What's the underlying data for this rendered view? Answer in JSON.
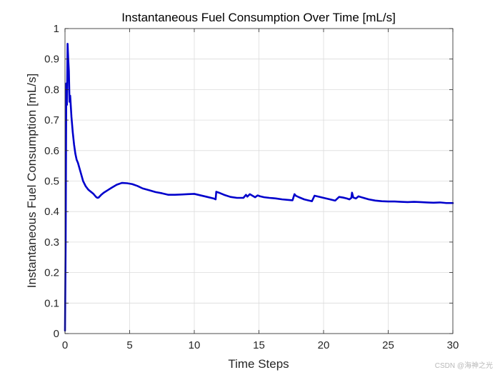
{
  "chart_data": {
    "type": "line",
    "title": "Instantaneous Fuel Consumption Over Time [mL/s]",
    "xlabel": "Time Steps",
    "ylabel": "Instantaneous Fuel Consumption [mL/s]",
    "xlim": [
      0,
      30
    ],
    "ylim": [
      0,
      1
    ],
    "xticks": [
      0,
      5,
      10,
      15,
      20,
      25,
      30
    ],
    "xtick_labels": [
      "0",
      "5",
      "10",
      "15",
      "20",
      "25",
      "30"
    ],
    "yticks": [
      0,
      0.1,
      0.2,
      0.3,
      0.4,
      0.5,
      0.6,
      0.7,
      0.8,
      0.9,
      1
    ],
    "ytick_labels": [
      "0",
      "0.1",
      "0.2",
      "0.3",
      "0.4",
      "0.5",
      "0.6",
      "0.7",
      "0.8",
      "0.9",
      "1"
    ],
    "grid": true,
    "series": [
      {
        "color": "#0000cc",
        "x": [
          0,
          0.05,
          0.1,
          0.15,
          0.2,
          0.25,
          0.3,
          0.35,
          0.4,
          0.5,
          0.6,
          0.7,
          0.8,
          0.9,
          1.0,
          1.2,
          1.4,
          1.6,
          1.8,
          2.0,
          2.2,
          2.4,
          2.5,
          2.6,
          2.8,
          3.0,
          3.3,
          3.6,
          4.0,
          4.4,
          4.8,
          5.2,
          5.6,
          6.0,
          6.5,
          7.0,
          7.5,
          8.0,
          8.5,
          9.0,
          9.5,
          10.0,
          10.5,
          11.0,
          11.5,
          11.65,
          11.7,
          11.9,
          12.3,
          12.8,
          13.3,
          13.8,
          14.0,
          14.1,
          14.3,
          14.5,
          14.7,
          14.9,
          15.1,
          15.4,
          15.8,
          16.3,
          16.8,
          17.3,
          17.6,
          17.75,
          17.85,
          18.1,
          18.5,
          18.9,
          19.1,
          19.3,
          19.6,
          20.0,
          20.5,
          20.9,
          21.2,
          21.5,
          21.8,
          22.0,
          22.15,
          22.2,
          22.3,
          22.5,
          22.7,
          23.0,
          23.5,
          24.0,
          24.5,
          25.0,
          25.5,
          26.0,
          26.5,
          27.0,
          27.5,
          28.0,
          28.5,
          29.0,
          29.5,
          30.0
        ],
        "y": [
          0.01,
          0.3,
          0.82,
          0.75,
          0.95,
          0.9,
          0.86,
          0.76,
          0.78,
          0.71,
          0.66,
          0.62,
          0.59,
          0.57,
          0.56,
          0.53,
          0.5,
          0.483,
          0.472,
          0.465,
          0.458,
          0.448,
          0.445,
          0.446,
          0.455,
          0.462,
          0.47,
          0.478,
          0.488,
          0.494,
          0.493,
          0.49,
          0.484,
          0.476,
          0.47,
          0.464,
          0.46,
          0.455,
          0.455,
          0.456,
          0.457,
          0.458,
          0.453,
          0.448,
          0.443,
          0.44,
          0.465,
          0.462,
          0.455,
          0.448,
          0.445,
          0.445,
          0.455,
          0.449,
          0.457,
          0.452,
          0.447,
          0.453,
          0.45,
          0.447,
          0.445,
          0.443,
          0.44,
          0.438,
          0.437,
          0.457,
          0.452,
          0.447,
          0.44,
          0.436,
          0.434,
          0.452,
          0.449,
          0.445,
          0.44,
          0.436,
          0.448,
          0.446,
          0.443,
          0.44,
          0.445,
          0.462,
          0.446,
          0.443,
          0.45,
          0.446,
          0.44,
          0.436,
          0.434,
          0.433,
          0.433,
          0.432,
          0.431,
          0.432,
          0.431,
          0.43,
          0.429,
          0.43,
          0.428,
          0.428
        ]
      }
    ]
  },
  "watermark": "CSDN @海神之光"
}
